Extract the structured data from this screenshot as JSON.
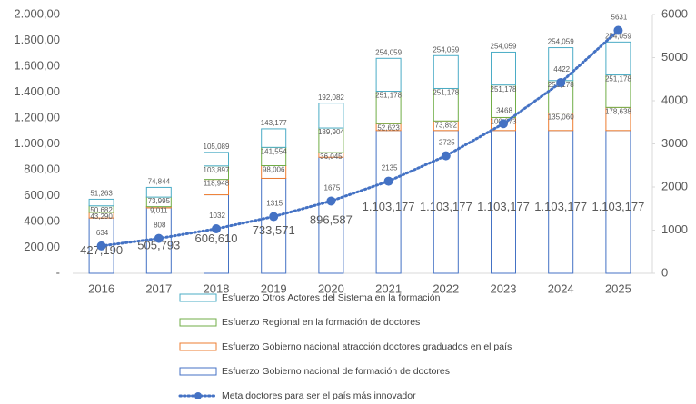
{
  "chart_data": {
    "type": "bar+line",
    "categories": [
      "2016",
      "2017",
      "2018",
      "2019",
      "2020",
      "2021",
      "2022",
      "2023",
      "2024",
      "2025"
    ],
    "series": [
      {
        "name": "Esfuerzo Gobierno nacional de formación de doctores",
        "type": "bar",
        "color": "#4472c4",
        "values": [
          427.19,
          505.793,
          606.61,
          733.571,
          896.587,
          1103.177,
          1103.177,
          1103.177,
          1103.177,
          1103.177
        ],
        "value_labels": [
          "427,190",
          "505,793",
          "606,610",
          "733,571",
          "896,587",
          "1.103,177",
          "1.103,177",
          "1.103,177",
          "1.103,177",
          "1.103,177"
        ]
      },
      {
        "name": "Esfuerzo Gobierno nacional atracción doctores graduados en el país",
        "type": "bar",
        "color": "#ed7d31",
        "values": [
          43.29,
          9.011,
          118.948,
          98.006,
          36.045,
          52.623,
          73.892,
          100.673,
          135.06,
          178.638
        ],
        "value_labels": [
          "43,290",
          "9,011",
          "118,948",
          "98,006",
          "36,045",
          "52,623",
          "73,892",
          "100,673",
          "135,060",
          "178,638"
        ]
      },
      {
        "name": "Esfuerzo Regional en la formación de doctores",
        "type": "bar",
        "color": "#70ad47",
        "values": [
          50.682,
          73.995,
          103.897,
          141.554,
          189.904,
          251.178,
          251.178,
          251.178,
          251.178,
          251.178
        ],
        "value_labels": [
          "50,682",
          "73,995",
          "103,897",
          "141,554",
          "189,904",
          "251,178",
          "251,178",
          "251,178",
          "251,178",
          "251,178"
        ]
      },
      {
        "name": "Esfuerzo Otros Actores del Sistema en la formación",
        "type": "bar",
        "color": "#4bacc6",
        "values": [
          51.263,
          74.844,
          105.089,
          143.177,
          192.082,
          254.059,
          254.059,
          254.059,
          254.059,
          254.059
        ],
        "value_labels": [
          "51,263",
          "74,844",
          "105,089",
          "143,177",
          "192,082",
          "254,059",
          "254,059",
          "254,059",
          "254,059",
          "254,059"
        ]
      },
      {
        "name": "Meta doctores para ser el país más innovador",
        "type": "line",
        "axis": "y2",
        "color": "#4472c4",
        "values": [
          634,
          808,
          1032,
          1315,
          1675,
          2135,
          2725,
          3468,
          4422,
          5631
        ]
      }
    ],
    "ylim": [
      0,
      2000
    ],
    "yticks": [
      {
        "value": 0,
        "label": "-"
      },
      {
        "value": 200,
        "label": "200,00"
      },
      {
        "value": 400,
        "label": "400,00"
      },
      {
        "value": 600,
        "label": "600,00"
      },
      {
        "value": 800,
        "label": "800,00"
      },
      {
        "value": 1000,
        "label": "1.000,00"
      },
      {
        "value": 1200,
        "label": "1.200,00"
      },
      {
        "value": 1400,
        "label": "1.400,00"
      },
      {
        "value": 1600,
        "label": "1.600,00"
      },
      {
        "value": 1800,
        "label": "1.800,00"
      },
      {
        "value": 2000,
        "label": "2.000,00"
      }
    ],
    "y2lim": [
      0,
      6000
    ],
    "y2ticks": [
      0,
      1000,
      2000,
      3000,
      4000,
      5000,
      6000
    ],
    "grid": false,
    "legend": "bottom"
  }
}
